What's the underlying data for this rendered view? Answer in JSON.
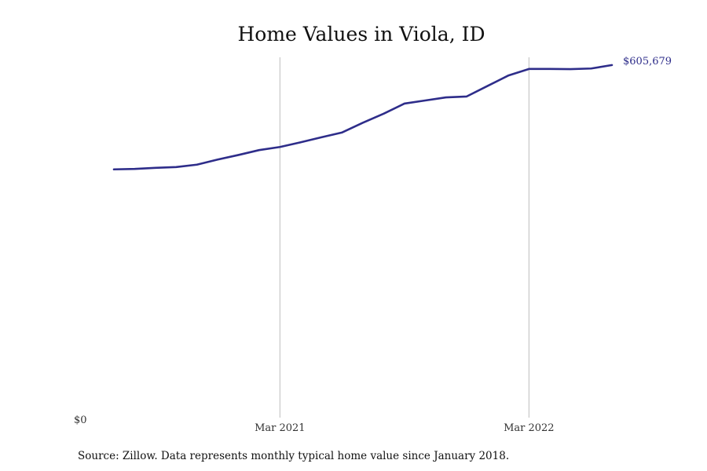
{
  "chart_data": {
    "type": "line",
    "title": "Home Values in Viola, ID",
    "source_note": "Source: Zillow. Data represents monthly typical home value since January 2018.",
    "xlabel": "",
    "ylabel": "",
    "x_ticks": [
      {
        "label": "Mar 2021",
        "index": 8
      },
      {
        "label": "Mar 2022",
        "index": 20
      }
    ],
    "y_ticks": [
      {
        "label": "$0",
        "value": 0
      }
    ],
    "ylim": [
      0,
      619000
    ],
    "grid": "vertical gridlines at x ticks",
    "legend": "none",
    "series": [
      {
        "color": "#2e2d8a",
        "values": [
          426500,
          427300,
          429100,
          430400,
          434600,
          443300,
          451200,
          459600,
          464900,
          473000,
          481600,
          489900,
          506600,
          522200,
          539500,
          544800,
          550100,
          551700,
          569700,
          587600,
          599000,
          599000,
          598700,
          599800,
          605679
        ]
      }
    ],
    "end_label": "$605,679"
  }
}
